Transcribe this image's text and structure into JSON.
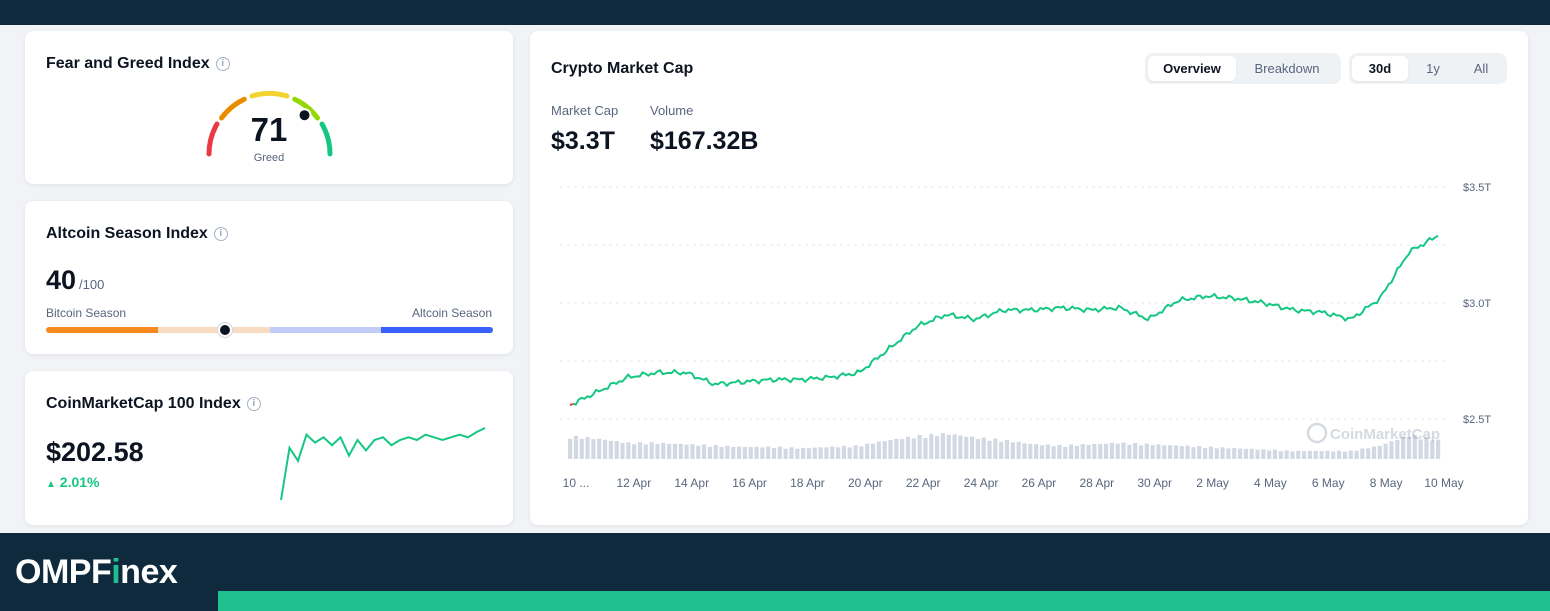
{
  "fear_greed": {
    "title": "Fear and Greed Index",
    "value": "71",
    "label": "Greed",
    "score": 71
  },
  "altcoin": {
    "title": "Altcoin Season Index",
    "value": "40",
    "max": "/100",
    "left_label": "Bitcoin Season",
    "right_label": "Altcoin Season",
    "score": 40,
    "colors": [
      "#f68a1e",
      "#f8dcc2",
      "#c1cdf6",
      "#3861fb"
    ]
  },
  "cmc100": {
    "title": "CoinMarketCap 100 Index",
    "value": "$202.58",
    "change": "2.01%",
    "change_color": "#16c784"
  },
  "market": {
    "title": "Crypto Market Cap",
    "view_tabs": [
      {
        "label": "Overview",
        "active": true
      },
      {
        "label": "Breakdown",
        "active": false
      }
    ],
    "range_tabs": [
      {
        "label": "30d",
        "active": true
      },
      {
        "label": "1y",
        "active": false
      },
      {
        "label": "All",
        "active": false
      }
    ],
    "market_cap_label": "Market Cap",
    "market_cap_value": "$3.3T",
    "volume_label": "Volume",
    "volume_value": "$167.32B",
    "watermark": "CoinMarketCap"
  },
  "chart_data": {
    "type": "line",
    "title": "Crypto Market Cap",
    "xlabel": "",
    "ylabel": "",
    "x": [
      "10 Apr",
      "11 Apr",
      "12 Apr",
      "13 Apr",
      "14 Apr",
      "15 Apr",
      "16 Apr",
      "17 Apr",
      "18 Apr",
      "19 Apr",
      "20 Apr",
      "21 Apr",
      "22 Apr",
      "23 Apr",
      "24 Apr",
      "25 Apr",
      "26 Apr",
      "27 Apr",
      "28 Apr",
      "29 Apr",
      "30 Apr",
      "1 May",
      "2 May",
      "3 May",
      "4 May",
      "5 May",
      "6 May",
      "7 May",
      "8 May",
      "9 May",
      "10 May"
    ],
    "tick_labels": [
      "10 ...",
      "12 Apr",
      "14 Apr",
      "16 Apr",
      "18 Apr",
      "20 Apr",
      "22 Apr",
      "24 Apr",
      "26 Apr",
      "28 Apr",
      "30 Apr",
      "2 May",
      "4 May",
      "6 May",
      "8 May",
      "10 May"
    ],
    "series": [
      {
        "name": "Market Cap",
        "unit": "T USD",
        "values": [
          2.56,
          2.62,
          2.68,
          2.7,
          2.7,
          2.65,
          2.66,
          2.67,
          2.67,
          2.68,
          2.7,
          2.8,
          2.9,
          2.95,
          2.93,
          2.97,
          2.97,
          2.98,
          2.97,
          2.98,
          2.93,
          3.01,
          3.03,
          3.02,
          3.0,
          2.97,
          2.96,
          2.93,
          3.02,
          3.22,
          3.29
        ]
      },
      {
        "name": "Volume",
        "unit": "relative",
        "values": [
          0.85,
          0.75,
          0.6,
          0.6,
          0.55,
          0.5,
          0.45,
          0.45,
          0.4,
          0.45,
          0.5,
          0.7,
          0.85,
          0.95,
          0.8,
          0.7,
          0.55,
          0.5,
          0.55,
          0.6,
          0.55,
          0.5,
          0.45,
          0.4,
          0.35,
          0.3,
          0.3,
          0.3,
          0.5,
          0.9,
          0.7
        ]
      }
    ],
    "y_ticks": [
      "$3.5T",
      "$3.0T",
      "$2.5T"
    ],
    "ylim": [
      2.5,
      3.5
    ],
    "down_color": "#ea3943",
    "up_color": "#16c784",
    "grid": true
  },
  "cmc100_chart": {
    "type": "line",
    "values": [
      175,
      195,
      190,
      200,
      197,
      199,
      196,
      199,
      192,
      198,
      194,
      198,
      199,
      196,
      198,
      199,
      198,
      200,
      199,
      198,
      199,
      200,
      199,
      201,
      202.58
    ]
  },
  "brand": {
    "name_start": "OMPF",
    "name_accent": "i",
    "name_end": "nex"
  }
}
